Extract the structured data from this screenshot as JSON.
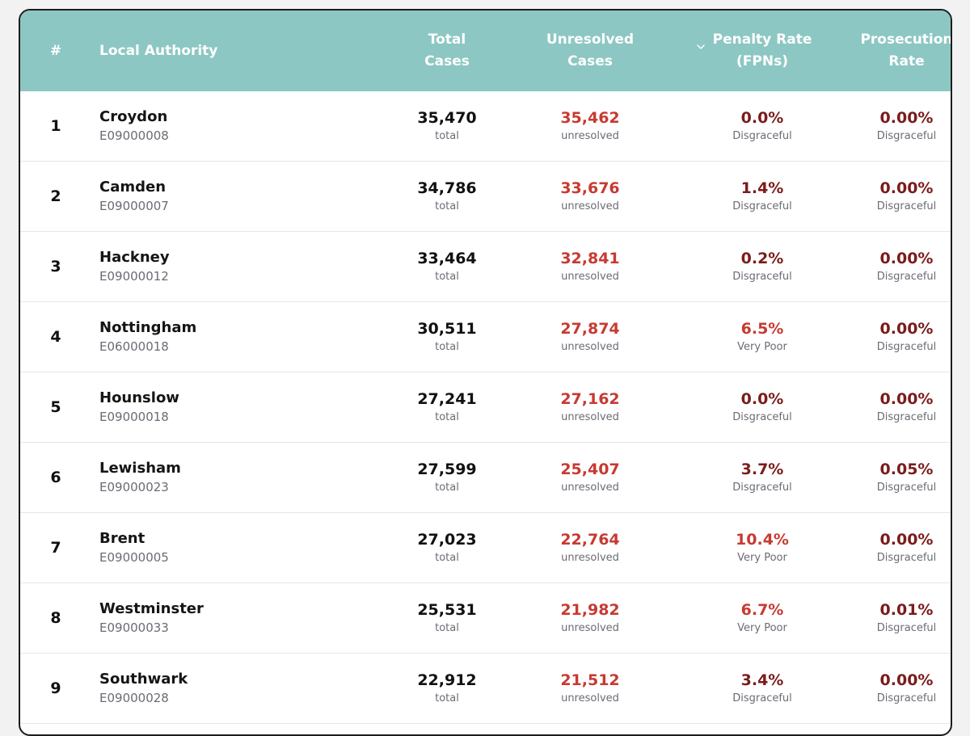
{
  "header": {
    "rank": "#",
    "authority": "Local Authority",
    "total_line1": "Total",
    "total_line2": "Cases",
    "unresolved_line1": "Unresolved",
    "unresolved_line2": "Cases",
    "penalty_line1": "Penalty Rate",
    "penalty_line2": "(FPNs)",
    "prosecution_line1": "Prosecution",
    "prosecution_line2": "Rate",
    "sort_icon": "chevron-down-icon"
  },
  "colors": {
    "header_bg": "#8cc7c3",
    "disgraceful": "#7a1c1c",
    "very_poor": "#c73a32",
    "unresolved": "#c73a32"
  },
  "rows": [
    {
      "rank": "1",
      "name": "Croydon",
      "code": "E09000008",
      "total": "35,470",
      "total_label": "total",
      "unresolved": "35,462",
      "unresolved_label": "unresolved",
      "penalty": "0.0%",
      "penalty_rating": "Disgraceful",
      "prosecution": "0.00%",
      "prosecution_rating": "Disgraceful"
    },
    {
      "rank": "2",
      "name": "Camden",
      "code": "E09000007",
      "total": "34,786",
      "total_label": "total",
      "unresolved": "33,676",
      "unresolved_label": "unresolved",
      "penalty": "1.4%",
      "penalty_rating": "Disgraceful",
      "prosecution": "0.00%",
      "prosecution_rating": "Disgraceful"
    },
    {
      "rank": "3",
      "name": "Hackney",
      "code": "E09000012",
      "total": "33,464",
      "total_label": "total",
      "unresolved": "32,841",
      "unresolved_label": "unresolved",
      "penalty": "0.2%",
      "penalty_rating": "Disgraceful",
      "prosecution": "0.00%",
      "prosecution_rating": "Disgraceful"
    },
    {
      "rank": "4",
      "name": "Nottingham",
      "code": "E06000018",
      "total": "30,511",
      "total_label": "total",
      "unresolved": "27,874",
      "unresolved_label": "unresolved",
      "penalty": "6.5%",
      "penalty_rating": "Very Poor",
      "prosecution": "0.00%",
      "prosecution_rating": "Disgraceful"
    },
    {
      "rank": "5",
      "name": "Hounslow",
      "code": "E09000018",
      "total": "27,241",
      "total_label": "total",
      "unresolved": "27,162",
      "unresolved_label": "unresolved",
      "penalty": "0.0%",
      "penalty_rating": "Disgraceful",
      "prosecution": "0.00%",
      "prosecution_rating": "Disgraceful"
    },
    {
      "rank": "6",
      "name": "Lewisham",
      "code": "E09000023",
      "total": "27,599",
      "total_label": "total",
      "unresolved": "25,407",
      "unresolved_label": "unresolved",
      "penalty": "3.7%",
      "penalty_rating": "Disgraceful",
      "prosecution": "0.05%",
      "prosecution_rating": "Disgraceful"
    },
    {
      "rank": "7",
      "name": "Brent",
      "code": "E09000005",
      "total": "27,023",
      "total_label": "total",
      "unresolved": "22,764",
      "unresolved_label": "unresolved",
      "penalty": "10.4%",
      "penalty_rating": "Very Poor",
      "prosecution": "0.00%",
      "prosecution_rating": "Disgraceful"
    },
    {
      "rank": "8",
      "name": "Westminster",
      "code": "E09000033",
      "total": "25,531",
      "total_label": "total",
      "unresolved": "21,982",
      "unresolved_label": "unresolved",
      "penalty": "6.7%",
      "penalty_rating": "Very Poor",
      "prosecution": "0.01%",
      "prosecution_rating": "Disgraceful"
    },
    {
      "rank": "9",
      "name": "Southwark",
      "code": "E09000028",
      "total": "22,912",
      "total_label": "total",
      "unresolved": "21,512",
      "unresolved_label": "unresolved",
      "penalty": "3.4%",
      "penalty_rating": "Disgraceful",
      "prosecution": "0.00%",
      "prosecution_rating": "Disgraceful"
    }
  ]
}
